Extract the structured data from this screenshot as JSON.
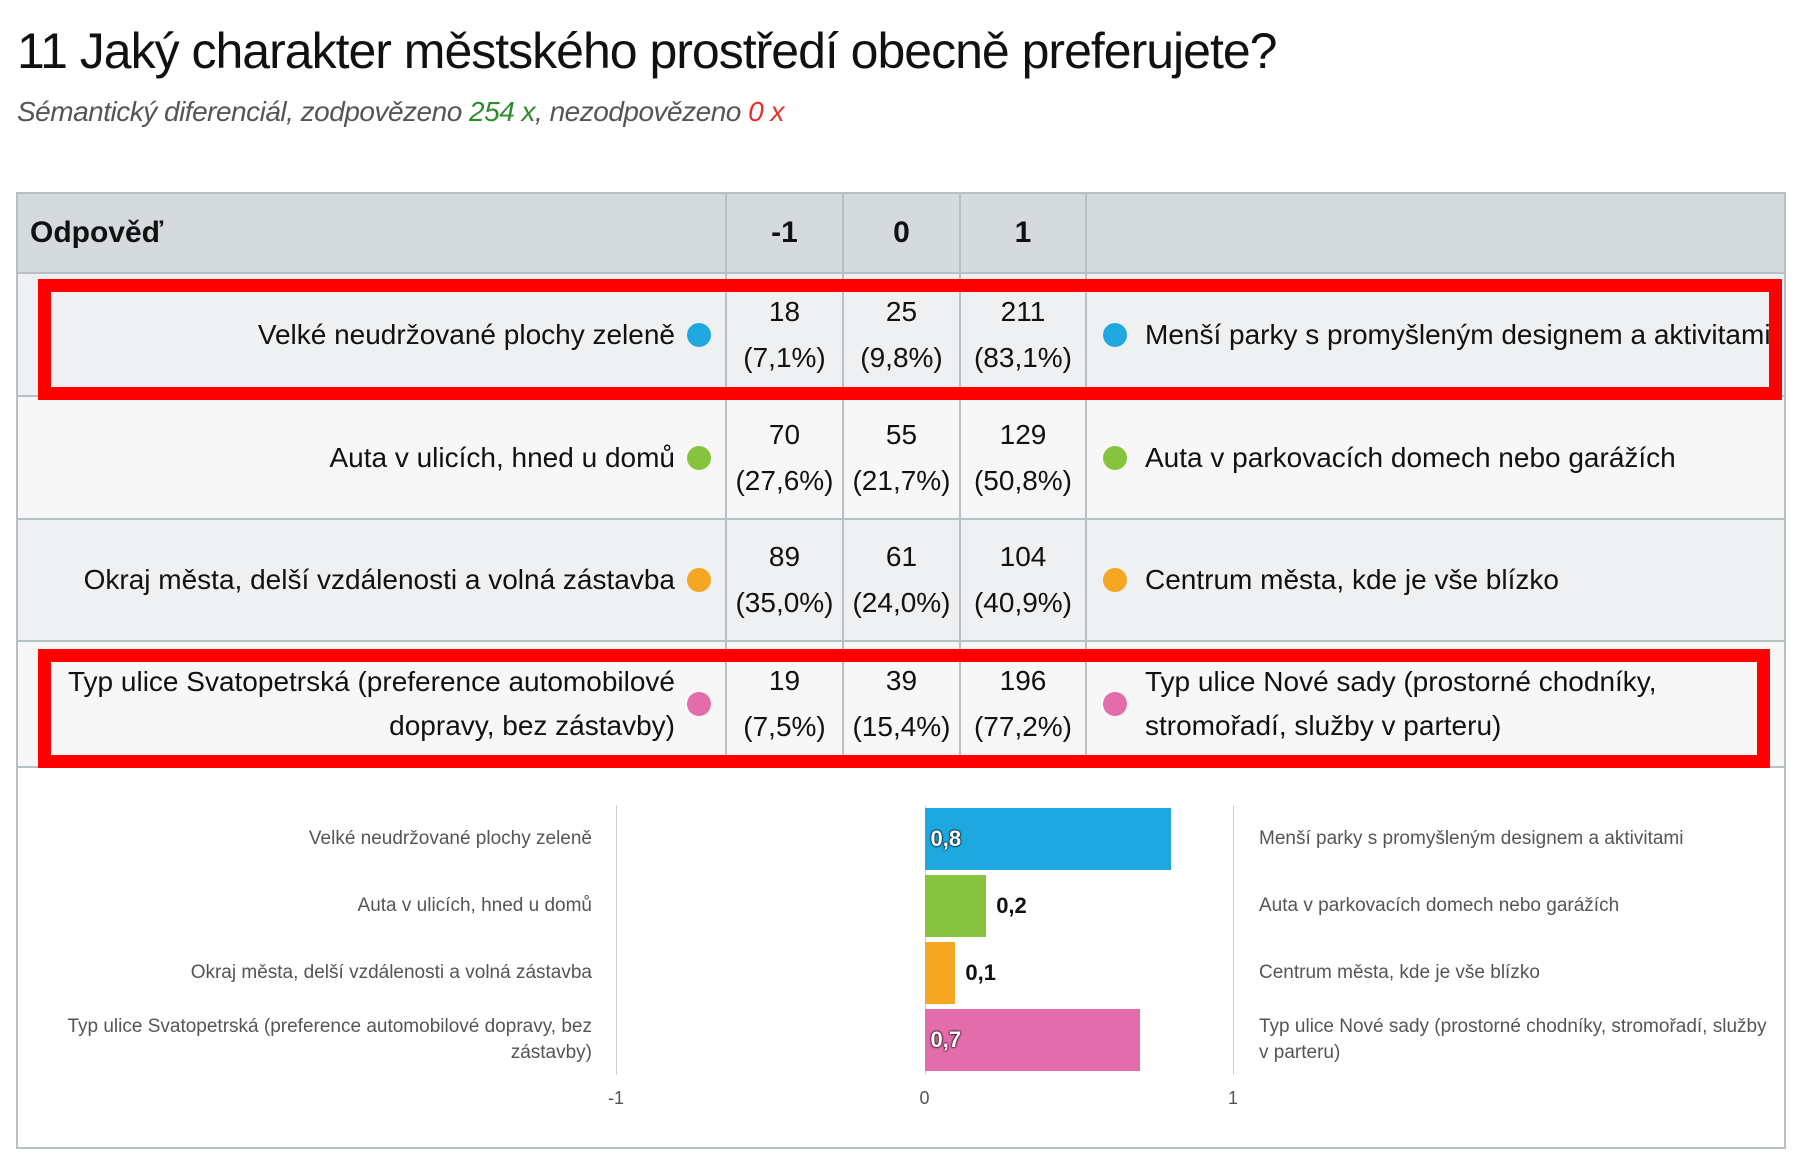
{
  "header": {
    "title": "11 Jaký charakter městského prostředí obecně preferujete?",
    "subtitle": {
      "type": "Sémantický diferenciál",
      "answered_label": ", zodpovězeno",
      "answered": "254 x",
      "separator": ",",
      "unanswered_label": "nezodpovězeno",
      "unanswered": "0 x"
    }
  },
  "table": {
    "columns": [
      "Odpověď",
      "-1",
      "0",
      "1"
    ],
    "rows": [
      {
        "left": "Velké neudržované plochy zeleně",
        "counts": [
          18,
          25,
          211
        ],
        "percents": [
          "(7,1%)",
          "(9,8%)",
          "(83,1%)"
        ],
        "right": "Menší parky s promyšleným designem a aktivitami"
      },
      {
        "left": "Auta v ulicích, hned u domů",
        "counts": [
          70,
          55,
          129
        ],
        "percents": [
          "(27,6%)",
          "(21,7%)",
          "(50,8%)"
        ],
        "right": "Auta v parkovacích domech nebo garážích"
      },
      {
        "left": "Okraj města, delší vzdálenosti a volná zástavba",
        "counts": [
          89,
          61,
          104
        ],
        "percents": [
          "(35,0%)",
          "(24,0%)",
          "(40,9%)"
        ],
        "right": "Centrum města, kde je vše blízko"
      },
      {
        "left": "Typ ulice Svatopetrská (preference automobilové dopravy, bez zástavby)",
        "counts": [
          19,
          39,
          196
        ],
        "percents": [
          "(7,5%)",
          "(15,4%)",
          "(77,2%)"
        ],
        "right": "Typ ulice Nové sady (prostorné chodníky, stromořadí, služby v parteru)"
      }
    ]
  },
  "chart_data": {
    "type": "bar",
    "categories": [
      "Velké neudržované plochy zeleně",
      "Auta v ulicích, hned u domů",
      "Okraj města, delší vzdálenosti a volná zástavba",
      "Typ ulice Svatopetrská (preference automobilové dopravy, bez zástavby)"
    ],
    "right_categories": [
      "Menší parky s promyšleným designem a aktivitami",
      "Auta v parkovacích domech nebo garážích",
      "Centrum města, kde je vše blízko",
      "Typ ulice Nové sady (prostorné chodníky, stromořadí, služby v parteru)"
    ],
    "values": [
      0.8,
      0.2,
      0.1,
      0.7
    ],
    "value_labels": [
      "0,8",
      "0,2",
      "0,1",
      "0,7"
    ],
    "colors": [
      "#1fa8e0",
      "#86c440",
      "#f5a623",
      "#e36caa"
    ],
    "xlim": [
      -1,
      1
    ],
    "xticks": [
      -1,
      0,
      1
    ]
  }
}
